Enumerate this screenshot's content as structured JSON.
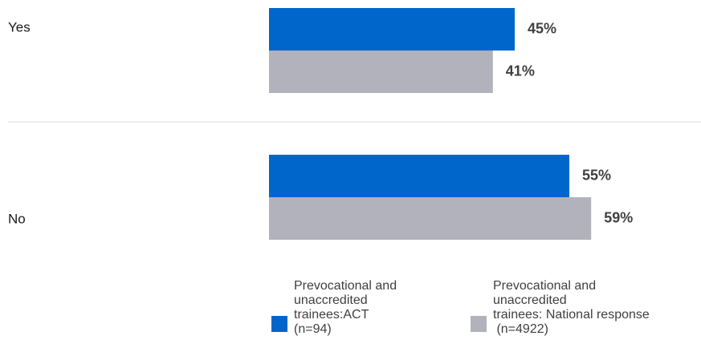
{
  "chart_data": {
    "type": "bar",
    "orientation": "horizontal",
    "categories": [
      "Yes",
      "No"
    ],
    "series": [
      {
        "name": "Prevocational and\nunaccredited\ntrainees:ACT\n(n=94)",
        "values": [
          45,
          55
        ],
        "labels": [
          "45%",
          "55%"
        ],
        "color": "#0066cc"
      },
      {
        "name": "Prevocational and\nunaccredited\ntrainees: National response\n (n=4922)",
        "values": [
          41,
          59
        ],
        "labels": [
          "41%",
          "59%"
        ],
        "color": "#b2b2bc"
      }
    ],
    "xlim": [
      0,
      100
    ],
    "grid": false,
    "legend_position": "bottom",
    "separator_color": "#d9d9d9"
  }
}
